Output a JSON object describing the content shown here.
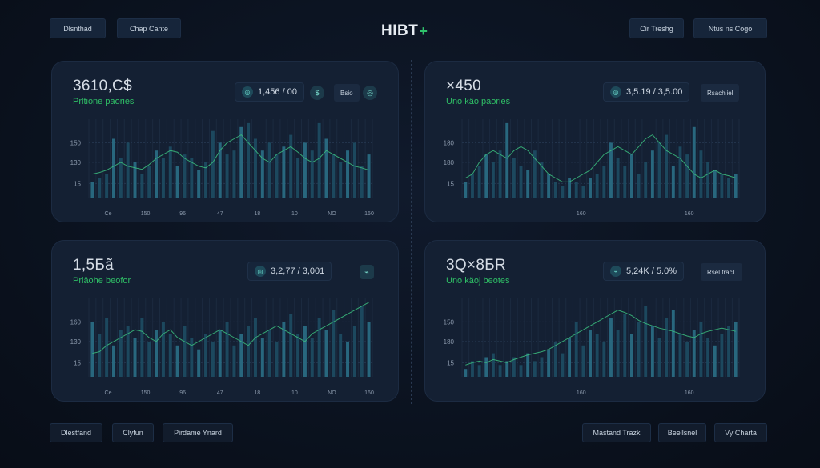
{
  "header": {
    "left_buttons": [
      "Dlsnthad",
      "Chap Cante"
    ],
    "logo": "HIBT",
    "logo_mark": "+",
    "right_buttons": [
      "Cir Treshg",
      "Ntus ns Cogo"
    ]
  },
  "footer": {
    "left_buttons": [
      "Dlestfand",
      "Clyfun",
      "Pirdame Ynard"
    ],
    "right_buttons": [
      "Mastand Trazk",
      "Beellsnel",
      "Vy Charta"
    ]
  },
  "panels": [
    {
      "value": "3610,C$",
      "subtitle": "Prltione paories",
      "stat_icon": "◎",
      "stat": "1,456 / 00",
      "circle_icon": "$",
      "tag": "Bsio",
      "circle_icon2": "◎"
    },
    {
      "value": "×450",
      "subtitle": "Uno käo paories",
      "stat_icon": "◎",
      "stat": "3,5.19 / 3,5.00",
      "tag": "Rsachliel"
    },
    {
      "value": "1,5Бã",
      "subtitle": "Priäohe beofor",
      "stat_icon": "◎",
      "stat": "3,2,77 / 3,001",
      "circle_icon": "⌁"
    },
    {
      "value": "3Q×8БR",
      "subtitle": "Uno käoj beotes",
      "stat_icon": "⌁",
      "stat": "5,24K / 5.0%",
      "tag": "Rsel fracl."
    }
  ],
  "chart_data": [
    {
      "type": "bar",
      "y_tick_labels": [
        "150",
        "130",
        "15"
      ],
      "x_tick_labels": [
        "Ce",
        "150",
        "96",
        "47",
        "18",
        "10",
        "NO",
        "160"
      ],
      "grid": true,
      "values": [
        20,
        25,
        30,
        75,
        50,
        70,
        45,
        30,
        40,
        60,
        50,
        65,
        40,
        55,
        50,
        35,
        45,
        85,
        70,
        55,
        60,
        90,
        95,
        75,
        60,
        70,
        55,
        65,
        80,
        50,
        70,
        60,
        95,
        75,
        55,
        45,
        60,
        70,
        40,
        55
      ],
      "line": [
        30,
        32,
        35,
        40,
        45,
        40,
        38,
        36,
        42,
        50,
        55,
        60,
        58,
        50,
        45,
        40,
        38,
        45,
        60,
        70,
        75,
        80,
        70,
        60,
        50,
        45,
        55,
        60,
        65,
        58,
        50,
        45,
        50,
        60,
        55,
        50,
        45,
        40,
        38,
        35
      ]
    },
    {
      "type": "bar",
      "y_tick_labels": [
        "180",
        "180",
        "15"
      ],
      "x_tick_labels": [
        "160",
        "160"
      ],
      "grid": true,
      "values": [
        20,
        30,
        40,
        55,
        45,
        60,
        95,
        50,
        40,
        35,
        60,
        45,
        30,
        20,
        15,
        25,
        20,
        15,
        25,
        30,
        40,
        70,
        50,
        40,
        55,
        30,
        45,
        60,
        70,
        80,
        40,
        65,
        55,
        90,
        60,
        45,
        35,
        30,
        25,
        30
      ],
      "line": [
        25,
        30,
        45,
        55,
        60,
        55,
        50,
        60,
        65,
        60,
        50,
        40,
        30,
        25,
        20,
        20,
        25,
        30,
        35,
        45,
        55,
        60,
        65,
        60,
        55,
        65,
        75,
        80,
        70,
        60,
        55,
        50,
        40,
        30,
        25,
        30,
        35,
        30,
        28,
        25
      ]
    },
    {
      "type": "bar",
      "y_tick_labels": [
        "160",
        "130",
        "15"
      ],
      "x_tick_labels": [
        "Ce",
        "150",
        "96",
        "47",
        "18",
        "10",
        "NO",
        "160"
      ],
      "grid": true,
      "values": [
        70,
        55,
        75,
        40,
        60,
        65,
        50,
        75,
        45,
        60,
        70,
        55,
        40,
        65,
        50,
        35,
        55,
        45,
        60,
        70,
        40,
        55,
        65,
        75,
        50,
        60,
        45,
        70,
        80,
        55,
        65,
        50,
        75,
        60,
        85,
        55,
        45,
        65,
        90,
        70
      ],
      "line": [
        30,
        32,
        40,
        45,
        50,
        55,
        60,
        58,
        50,
        45,
        55,
        60,
        50,
        45,
        40,
        45,
        50,
        55,
        60,
        55,
        50,
        45,
        40,
        50,
        55,
        60,
        65,
        60,
        55,
        50,
        45,
        55,
        60,
        65,
        70,
        75,
        80,
        85,
        90,
        95
      ]
    },
    {
      "type": "bar",
      "y_tick_labels": [
        "150",
        "180",
        "15"
      ],
      "x_tick_labels": [
        "160",
        "160"
      ],
      "grid": true,
      "values": [
        10,
        20,
        15,
        25,
        30,
        15,
        20,
        25,
        15,
        30,
        20,
        25,
        35,
        45,
        30,
        50,
        70,
        40,
        60,
        55,
        45,
        75,
        60,
        80,
        55,
        70,
        90,
        65,
        50,
        75,
        85,
        55,
        45,
        60,
        70,
        50,
        40,
        55,
        65,
        70
      ],
      "line": [
        15,
        18,
        20,
        18,
        22,
        20,
        18,
        22,
        25,
        28,
        30,
        32,
        35,
        40,
        45,
        50,
        55,
        60,
        65,
        70,
        75,
        80,
        85,
        82,
        78,
        72,
        68,
        65,
        62,
        60,
        58,
        55,
        52,
        50,
        55,
        58,
        60,
        62,
        60,
        58
      ]
    }
  ],
  "colors": {
    "bar": "#2a6f86",
    "bar_dim": "#1d4d63",
    "line": "#3bbf7f",
    "accent": "#2fc16b"
  }
}
